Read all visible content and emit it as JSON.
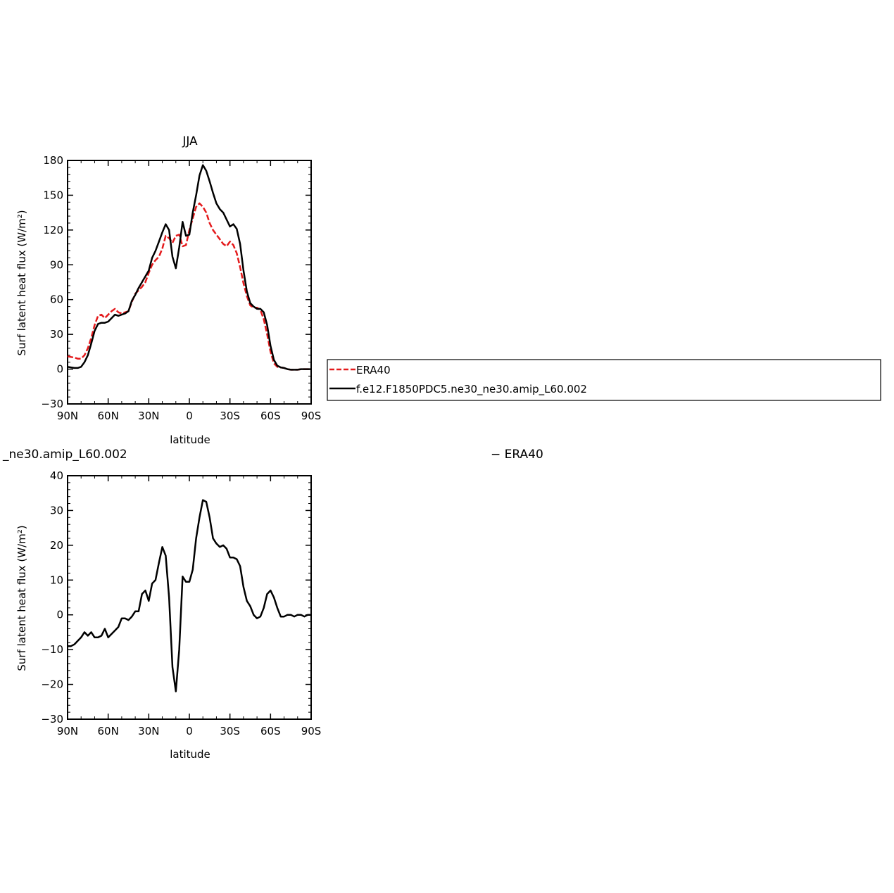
{
  "chart_data": [
    {
      "type": "line",
      "title": "JJA",
      "xlabel": "latitude",
      "ylabel": "Surf latent heat flux (W/m²)",
      "xlim": [
        90,
        -90
      ],
      "ylim": [
        -30,
        180
      ],
      "xticks": [
        90,
        60,
        30,
        0,
        -30,
        -60,
        -90
      ],
      "xticklabels": [
        "90N",
        "60N",
        "30N",
        "0",
        "30S",
        "60S",
        "90S"
      ],
      "yticks": [
        -30,
        0,
        30,
        60,
        90,
        120,
        150,
        180
      ],
      "yticklabels": [
        "−30",
        "0",
        "30",
        "60",
        "90",
        "120",
        "150",
        "180"
      ],
      "legend_position": "right",
      "series": [
        {
          "name": "ERA40",
          "color": "#e41a1c",
          "dash": "dashed",
          "x": [
            90,
            87.5,
            85,
            82.5,
            80,
            77.5,
            75,
            72.5,
            70,
            67.5,
            65,
            62.5,
            60,
            57.5,
            55,
            52.5,
            50,
            47.5,
            45,
            42.5,
            40,
            37.5,
            35,
            32.5,
            30,
            27.5,
            25,
            22.5,
            20,
            17.5,
            15,
            12.5,
            10,
            7.5,
            5,
            2.5,
            0,
            -2.5,
            -5,
            -7.5,
            -10,
            -12.5,
            -15,
            -17.5,
            -20,
            -22.5,
            -25,
            -27.5,
            -30,
            -32.5,
            -35,
            -37.5,
            -40,
            -42.5,
            -45,
            -47.5,
            -50,
            -52.5,
            -55,
            -57.5,
            -60,
            -62.5,
            -65,
            -67.5,
            -70,
            -72.5,
            -75,
            -77.5,
            -80,
            -82.5,
            -85,
            -87.5,
            -90
          ],
          "values": [
            11,
            10.5,
            10,
            9,
            9,
            12,
            18,
            27,
            38,
            46,
            47,
            44,
            47,
            50,
            52,
            49,
            48,
            49,
            50,
            58,
            65,
            68,
            71,
            75,
            83,
            90,
            94,
            97,
            104,
            115,
            113,
            109,
            115,
            116,
            106,
            107,
            120,
            130,
            140,
            143,
            140,
            135,
            126,
            120,
            116,
            112,
            108,
            106,
            110,
            107,
            100,
            88,
            74,
            63,
            55,
            53,
            53,
            51,
            43,
            30,
            15,
            5,
            2,
            1.5,
            1,
            0,
            -0.5,
            -0.5,
            -0.5,
            0,
            0,
            0,
            0
          ]
        },
        {
          "name": "f.e12.F1850PDC5.ne30_ne30.amip_L60.002",
          "color": "#000000",
          "dash": "solid",
          "x": [
            90,
            87.5,
            85,
            82.5,
            80,
            77.5,
            75,
            72.5,
            70,
            67.5,
            65,
            62.5,
            60,
            57.5,
            55,
            52.5,
            50,
            47.5,
            45,
            42.5,
            40,
            37.5,
            35,
            32.5,
            30,
            27.5,
            25,
            22.5,
            20,
            17.5,
            15,
            12.5,
            10,
            7.5,
            5,
            2.5,
            0,
            -2.5,
            -5,
            -7.5,
            -10,
            -12.5,
            -15,
            -17.5,
            -20,
            -22.5,
            -25,
            -27.5,
            -30,
            -32.5,
            -35,
            -37.5,
            -40,
            -42.5,
            -45,
            -47.5,
            -50,
            -52.5,
            -55,
            -57.5,
            -60,
            -62.5,
            -65,
            -67.5,
            -70,
            -72.5,
            -75,
            -77.5,
            -80,
            -82.5,
            -85,
            -87.5,
            -90
          ],
          "values": [
            2,
            1.5,
            1,
            1,
            2,
            6,
            12,
            22,
            33,
            39,
            40,
            40,
            41,
            44,
            47,
            46,
            47,
            48,
            50,
            59,
            64,
            70,
            75,
            80,
            85,
            96,
            102,
            110,
            118,
            125,
            120,
            97,
            87,
            105,
            127,
            115,
            116,
            135,
            150,
            167,
            176,
            171,
            162,
            152,
            143,
            138,
            135,
            129,
            123,
            125,
            121,
            108,
            85,
            67,
            57,
            54,
            52,
            52,
            49,
            38,
            20,
            8,
            3,
            1.5,
            1,
            0,
            -0.5,
            -0.5,
            -0.5,
            0,
            0,
            0,
            0
          ]
        }
      ]
    },
    {
      "type": "line",
      "title": "_ne30.amip_L60.002",
      "title_right": "− ERA40",
      "xlabel": "latitude",
      "ylabel": "Surf latent heat flux (W/m²)",
      "xlim": [
        90,
        -90
      ],
      "ylim": [
        -30,
        40
      ],
      "xticks": [
        90,
        60,
        30,
        0,
        -30,
        -60,
        -90
      ],
      "xticklabels": [
        "90N",
        "60N",
        "30N",
        "0",
        "30S",
        "60S",
        "90S"
      ],
      "yticks": [
        -30,
        -20,
        -10,
        0,
        10,
        20,
        30,
        40
      ],
      "yticklabels": [
        "−30",
        "−20",
        "−10",
        "0",
        "10",
        "20",
        "30",
        "40"
      ],
      "series": [
        {
          "color": "#000000",
          "dash": "solid",
          "x": [
            90,
            87.5,
            85,
            82.5,
            80,
            77.5,
            75,
            72.5,
            70,
            67.5,
            65,
            62.5,
            60,
            57.5,
            55,
            52.5,
            50,
            47.5,
            45,
            42.5,
            40,
            37.5,
            35,
            32.5,
            30,
            27.5,
            25,
            22.5,
            20,
            17.5,
            15,
            12.5,
            10,
            7.5,
            5,
            2.5,
            0,
            -2.5,
            -5,
            -7.5,
            -10,
            -12.5,
            -15,
            -17.5,
            -20,
            -22.5,
            -25,
            -27.5,
            -30,
            -32.5,
            -35,
            -37.5,
            -40,
            -42.5,
            -45,
            -47.5,
            -50,
            -52.5,
            -55,
            -57.5,
            -60,
            -62.5,
            -65,
            -67.5,
            -70,
            -72.5,
            -75,
            -77.5,
            -80,
            -82.5,
            -85,
            -87.5,
            -90
          ],
          "values": [
            -9,
            -9,
            -8.5,
            -7.5,
            -6.5,
            -5,
            -6,
            -5,
            -6.5,
            -6.5,
            -6,
            -4,
            -6.5,
            -5.5,
            -4.5,
            -3.5,
            -1,
            -1,
            -1.5,
            -0.5,
            1,
            1,
            6,
            7,
            4,
            9,
            10,
            15,
            19.5,
            17,
            5,
            -15,
            -22,
            -10,
            11,
            9.5,
            9.5,
            13,
            22,
            28,
            33,
            32.5,
            28,
            22,
            20.5,
            19.5,
            20,
            19,
            16.5,
            16.5,
            16,
            14,
            8,
            4,
            2.5,
            0,
            -1,
            -0.5,
            2,
            6,
            7,
            5,
            2,
            -0.5,
            -0.5,
            0,
            0,
            -0.5,
            0,
            0,
            -0.5,
            0,
            0
          ]
        }
      ]
    }
  ]
}
